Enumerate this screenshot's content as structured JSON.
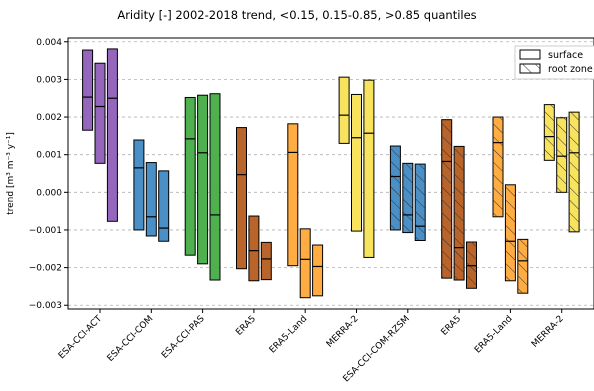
{
  "chart_data": {
    "type": "box",
    "title": "Aridity [-] 2002-2018 trend, <0.15, 0.15-0.85, >0.85 quantiles",
    "ylabel": "trend [m³ m⁻³ y⁻¹]",
    "ylim": [
      -0.0031,
      0.0041
    ],
    "yticks": [
      -0.003,
      -0.002,
      -0.001,
      0.0,
      0.001,
      0.002,
      0.003,
      0.004
    ],
    "ytick_labels": [
      "−0.003",
      "−0.002",
      "−0.001",
      "0.000",
      "0.001",
      "0.002",
      "0.003",
      "0.004"
    ],
    "grid": "horizontal dashed",
    "legend": {
      "position": "top-right",
      "entries": [
        {
          "label": "surface",
          "hatch": "none"
        },
        {
          "label": "root zone",
          "hatch": "diagonal"
        }
      ]
    },
    "quantiles": [
      "<0.15",
      "0.15-0.85",
      ">0.85"
    ],
    "groups": [
      {
        "label": "ESA-CCI-ACT",
        "color": "#9467bd",
        "hatch": false,
        "boxes": [
          {
            "low": 0.00165,
            "high": 0.00378,
            "median": 0.00253
          },
          {
            "low": 0.00077,
            "high": 0.00343,
            "median": 0.00228
          },
          {
            "low": -0.00077,
            "high": 0.00381,
            "median": 0.0025
          }
        ]
      },
      {
        "label": "ESA-CCI-COM",
        "color": "#4a8fc6",
        "hatch": false,
        "boxes": [
          {
            "low": -0.001,
            "high": 0.00139,
            "median": 0.00065
          },
          {
            "low": -0.00116,
            "high": 0.00079,
            "median": -0.00065
          },
          {
            "low": -0.0013,
            "high": 0.00057,
            "median": -0.00095
          }
        ]
      },
      {
        "label": "ESA-CCI-PAS",
        "color": "#4eb04e",
        "hatch": false,
        "boxes": [
          {
            "low": -0.00167,
            "high": 0.00252,
            "median": 0.00142
          },
          {
            "low": -0.0019,
            "high": 0.00258,
            "median": 0.00105
          },
          {
            "low": -0.00233,
            "high": 0.00262,
            "median": -0.0006
          }
        ]
      },
      {
        "label": "ERA5",
        "color": "#b8642a",
        "hatch": false,
        "boxes": [
          {
            "low": -0.00203,
            "high": 0.00172,
            "median": 0.00047
          },
          {
            "low": -0.00235,
            "high": -0.00063,
            "median": -0.00155
          },
          {
            "low": -0.00232,
            "high": -0.00133,
            "median": -0.00177
          }
        ]
      },
      {
        "label": "ERA5-Land",
        "color": "#ffad42",
        "hatch": false,
        "boxes": [
          {
            "low": -0.00195,
            "high": 0.00182,
            "median": 0.00106
          },
          {
            "low": -0.0028,
            "high": -0.00097,
            "median": -0.00178
          },
          {
            "low": -0.00275,
            "high": -0.0014,
            "median": -0.00197
          }
        ]
      },
      {
        "label": "MERRA-2",
        "color": "#f7e35e",
        "hatch": false,
        "boxes": [
          {
            "low": 0.0013,
            "high": 0.00306,
            "median": 0.00205
          },
          {
            "low": -0.00103,
            "high": 0.0026,
            "median": 0.00145
          },
          {
            "low": -0.00173,
            "high": 0.00298,
            "median": 0.00157
          }
        ]
      },
      {
        "label": "ESA-CCI-COM-RZSM",
        "color": "#4a8fc6",
        "hatch": true,
        "boxes": [
          {
            "low": -0.001,
            "high": 0.00123,
            "median": 0.00042
          },
          {
            "low": -0.00107,
            "high": 0.00077,
            "median": -0.0006
          },
          {
            "low": -0.00128,
            "high": 0.00075,
            "median": -0.0009
          }
        ]
      },
      {
        "label": "ERA5",
        "color": "#b8642a",
        "hatch": true,
        "boxes": [
          {
            "low": -0.00228,
            "high": 0.00193,
            "median": 0.00082
          },
          {
            "low": -0.00233,
            "high": 0.00122,
            "median": -0.00147
          },
          {
            "low": -0.00255,
            "high": -0.00132,
            "median": -0.00195
          }
        ]
      },
      {
        "label": "ERA5-Land",
        "color": "#ffad42",
        "hatch": true,
        "boxes": [
          {
            "low": -0.00065,
            "high": 0.002,
            "median": 0.00132
          },
          {
            "low": -0.00235,
            "high": 0.0002,
            "median": -0.0013
          },
          {
            "low": -0.00268,
            "high": -0.00125,
            "median": -0.00182
          }
        ]
      },
      {
        "label": "MERRA-2",
        "color": "#f7e35e",
        "hatch": true,
        "boxes": [
          {
            "low": 0.00085,
            "high": 0.00233,
            "median": 0.00148
          },
          {
            "low": 0.0,
            "high": 0.00198,
            "median": 0.00096
          },
          {
            "low": -0.00105,
            "high": 0.00213,
            "median": 0.00105
          }
        ]
      }
    ]
  }
}
